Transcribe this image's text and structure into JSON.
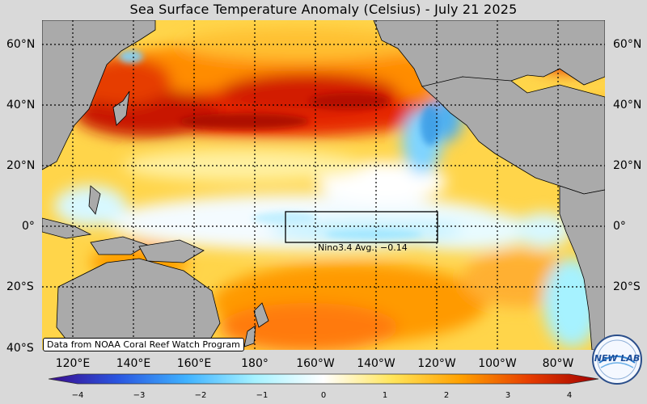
{
  "title": "Sea Surface Temperature Anomaly (Celsius) - July 21 2025",
  "lat_labels": [
    "60°N",
    "40°N",
    "20°N",
    "0°",
    "20°S",
    "40°S"
  ],
  "lon_labels": [
    "120°E",
    "140°E",
    "160°E",
    "180°",
    "160°W",
    "140°W",
    "120°W",
    "100°W",
    "80°W"
  ],
  "nino_box": {
    "label": "Nino3.4 Avg.: −0.14"
  },
  "credit": "Data from NOAA Coral Reef Watch Program",
  "colorbar": {
    "ticks": [
      "−4",
      "−3",
      "−2",
      "−1",
      "0",
      "1",
      "2",
      "3",
      "4"
    ],
    "colors": [
      "#3a0a8c",
      "#2a55e0",
      "#3fb2ff",
      "#a6f2ff",
      "#ffffff",
      "#ffe55a",
      "#ffa000",
      "#e63c00",
      "#a00000"
    ]
  },
  "logo": {
    "text": "NEW LAB"
  },
  "palette": {
    "land": "#aaaaaa",
    "background": "#d9d9d9"
  }
}
